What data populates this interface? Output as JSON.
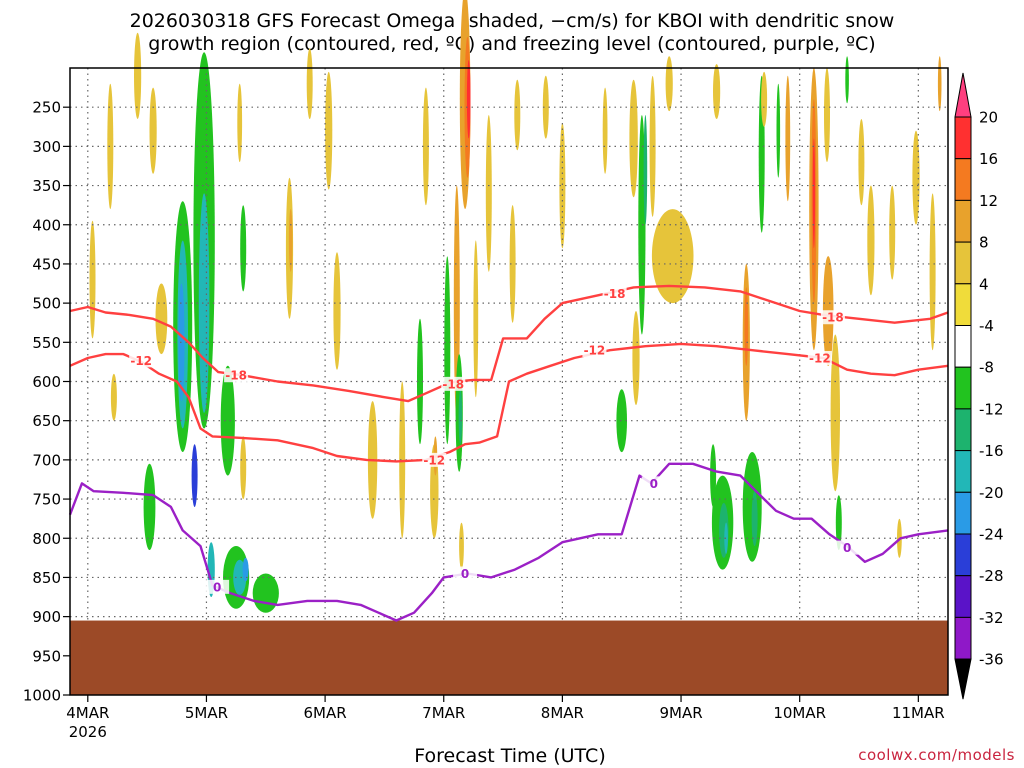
{
  "chart_data": {
    "type": "heatmap",
    "title": "2026030318 GFS Forecast Omega (shaded, −cm/s) for KBOI with dendritic snow",
    "subtitle": "growth region (contoured, red, ºC) and freezing level (contoured, purple, ºC)",
    "xlabel": "Forecast Time (UTC)",
    "ylabel": "",
    "credit": "coolwx.com/models",
    "x_ticks": [
      {
        "day": 4,
        "label": "4MAR",
        "sub": "2026"
      },
      {
        "day": 5,
        "label": "5MAR",
        "sub": ""
      },
      {
        "day": 6,
        "label": "6MAR",
        "sub": ""
      },
      {
        "day": 7,
        "label": "7MAR",
        "sub": ""
      },
      {
        "day": 8,
        "label": "8MAR",
        "sub": ""
      },
      {
        "day": 9,
        "label": "9MAR",
        "sub": ""
      },
      {
        "day": 10,
        "label": "10MAR",
        "sub": ""
      },
      {
        "day": 11,
        "label": "11MAR",
        "sub": ""
      }
    ],
    "xlim": [
      3.85,
      11.25
    ],
    "y_ticks": [
      250,
      300,
      350,
      400,
      450,
      500,
      550,
      600,
      650,
      700,
      750,
      800,
      850,
      900,
      950,
      1000
    ],
    "ylim": [
      200,
      1000
    ],
    "ground_pressure": 905,
    "colorbar": {
      "labels": [
        20,
        16,
        12,
        8,
        4,
        -4,
        -8,
        -12,
        -16,
        -20,
        -24,
        -28,
        -32,
        -36
      ],
      "bins": [
        {
          "color": "#ff3f7f"
        },
        {
          "color": "#ff3030"
        },
        {
          "color": "#f47a20"
        },
        {
          "color": "#e8a22c"
        },
        {
          "color": "#e6c43a"
        },
        {
          "color": "#f0dc3a"
        },
        {
          "color": "#ffffff"
        },
        {
          "color": "#22c31f"
        },
        {
          "color": "#1db36e"
        },
        {
          "color": "#22b7b7"
        },
        {
          "color": "#2a9be6"
        },
        {
          "color": "#2a3ed8"
        },
        {
          "color": "#5a13c8"
        },
        {
          "color": "#8f18c8"
        },
        {
          "color": "#b3b3b3"
        }
      ]
    },
    "omega_cells": [
      {
        "day": 4.04,
        "p": 470,
        "w": 0.05,
        "h": 150,
        "v": 6
      },
      {
        "day": 4.19,
        "p": 300,
        "w": 0.05,
        "h": 160,
        "v": 6
      },
      {
        "day": 4.22,
        "p": 620,
        "w": 0.05,
        "h": 60,
        "v": 6
      },
      {
        "day": 4.42,
        "p": 210,
        "w": 0.06,
        "h": 110,
        "v": 6
      },
      {
        "day": 4.62,
        "p": 520,
        "w": 0.1,
        "h": 90,
        "v": 6
      },
      {
        "day": 4.55,
        "p": 280,
        "w": 0.06,
        "h": 110,
        "v": 6
      },
      {
        "day": 4.8,
        "p": 530,
        "w": 0.16,
        "h": 320,
        "v": -6
      },
      {
        "day": 4.8,
        "p": 540,
        "w": 0.09,
        "h": 240,
        "v": -12
      },
      {
        "day": 4.79,
        "p": 550,
        "w": 0.05,
        "h": 150,
        "v": -18
      },
      {
        "day": 4.98,
        "p": 420,
        "w": 0.18,
        "h": 480,
        "v": -6
      },
      {
        "day": 4.98,
        "p": 500,
        "w": 0.09,
        "h": 280,
        "v": -12
      },
      {
        "day": 4.9,
        "p": 720,
        "w": 0.05,
        "h": 80,
        "v": -22
      },
      {
        "day": 5.25,
        "p": 850,
        "w": 0.22,
        "h": 80,
        "v": -6
      },
      {
        "day": 5.28,
        "p": 850,
        "w": 0.11,
        "h": 45,
        "v": -12
      },
      {
        "day": 5.33,
        "p": 840,
        "w": 0.05,
        "h": 30,
        "v": -18
      },
      {
        "day": 5.04,
        "p": 840,
        "w": 0.06,
        "h": 70,
        "v": -12
      },
      {
        "day": 5.5,
        "p": 870,
        "w": 0.22,
        "h": 50,
        "v": -6
      },
      {
        "day": 5.18,
        "p": 650,
        "w": 0.12,
        "h": 140,
        "v": -6
      },
      {
        "day": 4.52,
        "p": 760,
        "w": 0.1,
        "h": 110,
        "v": -6
      },
      {
        "day": 5.31,
        "p": 430,
        "w": 0.05,
        "h": 110,
        "v": -6
      },
      {
        "day": 5.28,
        "p": 270,
        "w": 0.04,
        "h": 100,
        "v": 6
      },
      {
        "day": 5.31,
        "p": 710,
        "w": 0.05,
        "h": 80,
        "v": 6
      },
      {
        "day": 5.7,
        "p": 430,
        "w": 0.06,
        "h": 180,
        "v": 6
      },
      {
        "day": 5.71,
        "p": 420,
        "w": 0.03,
        "h": 80,
        "v": 10
      },
      {
        "day": 5.87,
        "p": 220,
        "w": 0.05,
        "h": 90,
        "v": 6
      },
      {
        "day": 6.03,
        "p": 280,
        "w": 0.06,
        "h": 150,
        "v": 6
      },
      {
        "day": 6.1,
        "p": 510,
        "w": 0.06,
        "h": 150,
        "v": 6
      },
      {
        "day": 6.4,
        "p": 700,
        "w": 0.08,
        "h": 150,
        "v": 6
      },
      {
        "day": 6.8,
        "p": 600,
        "w": 0.05,
        "h": 160,
        "v": -6
      },
      {
        "day": 6.65,
        "p": 700,
        "w": 0.05,
        "h": 200,
        "v": 6
      },
      {
        "day": 6.85,
        "p": 300,
        "w": 0.05,
        "h": 150,
        "v": 6
      },
      {
        "day": 6.92,
        "p": 740,
        "w": 0.07,
        "h": 120,
        "v": 6
      },
      {
        "day": 6.93,
        "p": 695,
        "w": 0.03,
        "h": 50,
        "v": 10
      },
      {
        "day": 7.18,
        "p": 240,
        "w": 0.09,
        "h": 280,
        "v": 8
      },
      {
        "day": 7.2,
        "p": 250,
        "w": 0.05,
        "h": 180,
        "v": 12
      },
      {
        "day": 7.21,
        "p": 240,
        "w": 0.03,
        "h": 100,
        "v": 18
      },
      {
        "day": 7.11,
        "p": 500,
        "w": 0.05,
        "h": 300,
        "v": 8
      },
      {
        "day": 7.27,
        "p": 520,
        "w": 0.04,
        "h": 200,
        "v": 6
      },
      {
        "day": 7.03,
        "p": 560,
        "w": 0.05,
        "h": 240,
        "v": -6
      },
      {
        "day": 7.13,
        "p": 640,
        "w": 0.06,
        "h": 150,
        "v": -6
      },
      {
        "day": 7.14,
        "p": 645,
        "w": 0.03,
        "h": 70,
        "v": -10
      },
      {
        "day": 7.15,
        "p": 810,
        "w": 0.04,
        "h": 60,
        "v": 6
      },
      {
        "day": 7.38,
        "p": 360,
        "w": 0.05,
        "h": 200,
        "v": 6
      },
      {
        "day": 7.58,
        "p": 450,
        "w": 0.05,
        "h": 150,
        "v": 6
      },
      {
        "day": 7.62,
        "p": 260,
        "w": 0.05,
        "h": 90,
        "v": 6
      },
      {
        "day": 7.86,
        "p": 250,
        "w": 0.05,
        "h": 80,
        "v": 6
      },
      {
        "day": 8.0,
        "p": 350,
        "w": 0.05,
        "h": 160,
        "v": 6
      },
      {
        "day": 8.36,
        "p": 280,
        "w": 0.04,
        "h": 110,
        "v": 6
      },
      {
        "day": 8.6,
        "p": 290,
        "w": 0.07,
        "h": 150,
        "v": 6
      },
      {
        "day": 8.62,
        "p": 570,
        "w": 0.06,
        "h": 120,
        "v": 6
      },
      {
        "day": 8.67,
        "p": 400,
        "w": 0.06,
        "h": 280,
        "v": -6
      },
      {
        "day": 8.7,
        "p": 330,
        "w": 0.03,
        "h": 140,
        "v": -10
      },
      {
        "day": 8.76,
        "p": 300,
        "w": 0.05,
        "h": 180,
        "v": 6
      },
      {
        "day": 8.5,
        "p": 650,
        "w": 0.09,
        "h": 80,
        "v": -6
      },
      {
        "day": 8.9,
        "p": 220,
        "w": 0.06,
        "h": 70,
        "v": 6
      },
      {
        "day": 8.93,
        "p": 440,
        "w": 0.35,
        "h": 120,
        "v": 6
      },
      {
        "day": 9.27,
        "p": 720,
        "w": 0.05,
        "h": 80,
        "v": -6
      },
      {
        "day": 9.35,
        "p": 780,
        "w": 0.18,
        "h": 120,
        "v": -6
      },
      {
        "day": 9.36,
        "p": 790,
        "w": 0.08,
        "h": 70,
        "v": -10
      },
      {
        "day": 9.38,
        "p": 800,
        "w": 0.03,
        "h": 40,
        "v": -14
      },
      {
        "day": 9.3,
        "p": 230,
        "w": 0.06,
        "h": 70,
        "v": 6
      },
      {
        "day": 9.55,
        "p": 550,
        "w": 0.06,
        "h": 200,
        "v": 8
      },
      {
        "day": 9.55,
        "p": 530,
        "w": 0.03,
        "h": 100,
        "v": 12
      },
      {
        "day": 9.68,
        "p": 310,
        "w": 0.05,
        "h": 200,
        "v": -6
      },
      {
        "day": 9.7,
        "p": 240,
        "w": 0.05,
        "h": 70,
        "v": 6
      },
      {
        "day": 9.6,
        "p": 760,
        "w": 0.16,
        "h": 140,
        "v": -6
      },
      {
        "day": 9.62,
        "p": 775,
        "w": 0.05,
        "h": 70,
        "v": -10
      },
      {
        "day": 9.82,
        "p": 280,
        "w": 0.03,
        "h": 120,
        "v": -6
      },
      {
        "day": 9.9,
        "p": 290,
        "w": 0.04,
        "h": 160,
        "v": 8
      },
      {
        "day": 10.12,
        "p": 380,
        "w": 0.08,
        "h": 360,
        "v": 10
      },
      {
        "day": 10.12,
        "p": 370,
        "w": 0.04,
        "h": 260,
        "v": 14
      },
      {
        "day": 10.12,
        "p": 360,
        "w": 0.02,
        "h": 140,
        "v": 18
      },
      {
        "day": 10.23,
        "p": 260,
        "w": 0.05,
        "h": 120,
        "v": 6
      },
      {
        "day": 10.24,
        "p": 510,
        "w": 0.09,
        "h": 140,
        "v": 10
      },
      {
        "day": 10.3,
        "p": 640,
        "w": 0.08,
        "h": 200,
        "v": 6
      },
      {
        "day": 10.33,
        "p": 780,
        "w": 0.05,
        "h": 70,
        "v": -6
      },
      {
        "day": 10.4,
        "p": 215,
        "w": 0.03,
        "h": 60,
        "v": -6
      },
      {
        "day": 10.52,
        "p": 320,
        "w": 0.05,
        "h": 110,
        "v": 6
      },
      {
        "day": 10.6,
        "p": 420,
        "w": 0.06,
        "h": 140,
        "v": 6
      },
      {
        "day": 10.78,
        "p": 410,
        "w": 0.05,
        "h": 120,
        "v": 6
      },
      {
        "day": 10.84,
        "p": 800,
        "w": 0.04,
        "h": 50,
        "v": 6
      },
      {
        "day": 10.98,
        "p": 340,
        "w": 0.06,
        "h": 120,
        "v": 6
      },
      {
        "day": 11.12,
        "p": 460,
        "w": 0.05,
        "h": 200,
        "v": 6
      },
      {
        "day": 11.18,
        "p": 220,
        "w": 0.03,
        "h": 70,
        "v": 10
      }
    ],
    "contours": [
      {
        "name": "dgz -12",
        "label": "-12",
        "color": "#ff4040",
        "points": [
          [
            3.85,
            580
          ],
          [
            4.0,
            570
          ],
          [
            4.15,
            565
          ],
          [
            4.3,
            565
          ],
          [
            4.45,
            575
          ],
          [
            4.6,
            590
          ],
          [
            4.75,
            600
          ],
          [
            4.85,
            620
          ],
          [
            4.95,
            660
          ],
          [
            5.05,
            670
          ],
          [
            5.3,
            672
          ],
          [
            5.6,
            675
          ],
          [
            5.9,
            685
          ],
          [
            6.1,
            695
          ],
          [
            6.35,
            700
          ],
          [
            6.6,
            702
          ],
          [
            6.85,
            700
          ],
          [
            7.05,
            690
          ],
          [
            7.18,
            680
          ],
          [
            7.3,
            678
          ],
          [
            7.45,
            670
          ],
          [
            7.55,
            600
          ],
          [
            7.7,
            590
          ],
          [
            7.9,
            580
          ],
          [
            8.1,
            570
          ],
          [
            8.4,
            560
          ],
          [
            8.7,
            555
          ],
          [
            9.0,
            552
          ],
          [
            9.3,
            555
          ],
          [
            9.6,
            560
          ],
          [
            9.9,
            565
          ],
          [
            10.2,
            570
          ],
          [
            10.4,
            585
          ],
          [
            10.6,
            590
          ],
          [
            10.8,
            592
          ],
          [
            11.0,
            585
          ],
          [
            11.25,
            580
          ]
        ],
        "label_at": [
          [
            4.45,
            573
          ],
          [
            6.92,
            700
          ],
          [
            8.27,
            560
          ],
          [
            10.17,
            570
          ]
        ]
      },
      {
        "name": "dgz -18",
        "label": "-18",
        "color": "#ff4040",
        "points": [
          [
            3.85,
            510
          ],
          [
            4.0,
            505
          ],
          [
            4.15,
            512
          ],
          [
            4.35,
            515
          ],
          [
            4.55,
            520
          ],
          [
            4.7,
            530
          ],
          [
            4.85,
            550
          ],
          [
            4.97,
            570
          ],
          [
            5.1,
            588
          ],
          [
            5.3,
            592
          ],
          [
            5.6,
            600
          ],
          [
            5.9,
            605
          ],
          [
            6.2,
            612
          ],
          [
            6.5,
            620
          ],
          [
            6.7,
            625
          ],
          [
            6.85,
            615
          ],
          [
            7.0,
            605
          ],
          [
            7.1,
            600
          ],
          [
            7.25,
            598
          ],
          [
            7.4,
            598
          ],
          [
            7.5,
            545
          ],
          [
            7.7,
            545
          ],
          [
            7.85,
            520
          ],
          [
            8.0,
            500
          ],
          [
            8.3,
            490
          ],
          [
            8.6,
            480
          ],
          [
            8.9,
            478
          ],
          [
            9.2,
            480
          ],
          [
            9.5,
            485
          ],
          [
            9.8,
            500
          ],
          [
            10.0,
            510
          ],
          [
            10.2,
            515
          ],
          [
            10.5,
            520
          ],
          [
            10.8,
            525
          ],
          [
            11.1,
            520
          ],
          [
            11.25,
            512
          ]
        ],
        "label_at": [
          [
            5.25,
            592
          ],
          [
            7.08,
            603
          ],
          [
            8.44,
            488
          ],
          [
            10.28,
            518
          ]
        ]
      },
      {
        "name": "freezing level 0",
        "label": "0",
        "color": "#9b20c6",
        "points": [
          [
            3.85,
            770
          ],
          [
            3.95,
            730
          ],
          [
            4.05,
            740
          ],
          [
            4.3,
            742
          ],
          [
            4.55,
            745
          ],
          [
            4.7,
            760
          ],
          [
            4.8,
            790
          ],
          [
            4.95,
            810
          ],
          [
            5.05,
            860
          ],
          [
            5.2,
            870
          ],
          [
            5.4,
            880
          ],
          [
            5.6,
            885
          ],
          [
            5.85,
            880
          ],
          [
            6.1,
            880
          ],
          [
            6.3,
            885
          ],
          [
            6.45,
            895
          ],
          [
            6.6,
            905
          ],
          [
            6.75,
            895
          ],
          [
            6.9,
            870
          ],
          [
            7.0,
            850
          ],
          [
            7.2,
            845
          ],
          [
            7.4,
            850
          ],
          [
            7.6,
            840
          ],
          [
            7.8,
            825
          ],
          [
            8.0,
            805
          ],
          [
            8.3,
            795
          ],
          [
            8.5,
            795
          ],
          [
            8.65,
            720
          ],
          [
            8.75,
            730
          ],
          [
            8.9,
            705
          ],
          [
            9.1,
            705
          ],
          [
            9.3,
            715
          ],
          [
            9.5,
            720
          ],
          [
            9.7,
            750
          ],
          [
            9.8,
            765
          ],
          [
            9.95,
            775
          ],
          [
            10.1,
            775
          ],
          [
            10.25,
            795
          ],
          [
            10.4,
            810
          ],
          [
            10.55,
            830
          ],
          [
            10.7,
            820
          ],
          [
            10.85,
            800
          ],
          [
            11.0,
            795
          ],
          [
            11.25,
            790
          ]
        ],
        "label_at": [
          [
            5.09,
            862
          ],
          [
            7.18,
            845
          ],
          [
            8.77,
            730
          ],
          [
            10.4,
            812
          ]
        ]
      }
    ]
  }
}
